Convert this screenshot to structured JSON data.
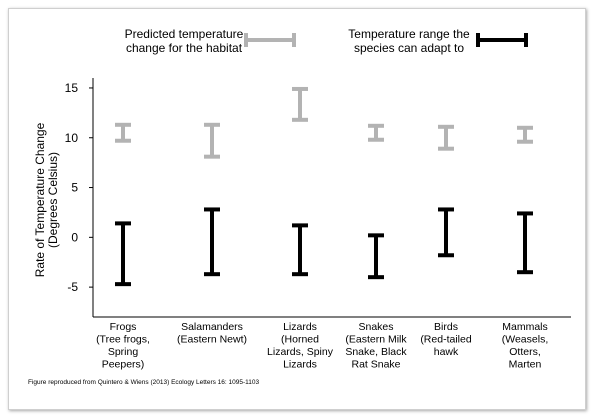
{
  "chart_data": {
    "type": "error-bar range",
    "categories": [
      [
        "Frogs",
        "(Tree frogs,",
        "Spring",
        "Peepers)"
      ],
      [
        "Salamanders",
        "(Eastern Newt)"
      ],
      [
        "Lizards",
        "(Horned",
        "Lizards, Spiny",
        "Lizards"
      ],
      [
        "Snakes",
        "(Eastern Milk",
        "Snake, Black",
        "Rat Snake"
      ],
      [
        "Birds",
        "(Red-tailed",
        "hawk"
      ],
      [
        "Mammals",
        "(Weasels,",
        "Otters,",
        "Marten"
      ]
    ],
    "series": [
      {
        "name": "Predicted temperature change for the habitat",
        "color": "#b3b3b3",
        "ranges": [
          [
            9.7,
            11.3
          ],
          [
            8.1,
            11.3
          ],
          [
            11.8,
            14.9
          ],
          [
            9.8,
            11.2
          ],
          [
            8.9,
            11.1
          ],
          [
            9.6,
            11.0
          ]
        ]
      },
      {
        "name": "Temperature range the species can adapt to",
        "color": "#000000",
        "ranges": [
          [
            -4.7,
            1.4
          ],
          [
            -3.7,
            2.8
          ],
          [
            -3.7,
            1.2
          ],
          [
            -4.0,
            0.2
          ],
          [
            -1.8,
            2.8
          ],
          [
            -3.5,
            2.4
          ]
        ]
      }
    ],
    "ylabel": [
      "Rate of Temperature Change",
      "(Degrees Celsius)"
    ],
    "yticks": [
      15,
      10,
      5,
      0,
      -5
    ],
    "ylim": [
      -8,
      16
    ],
    "grid": false,
    "legend": [
      {
        "lines": [
          "Predicted temperature",
          "change for the habitat"
        ],
        "color": "#b3b3b3"
      },
      {
        "lines": [
          "Temperature range the",
          "species can adapt to"
        ],
        "color": "#000000"
      }
    ],
    "credit": "Figure reproduced from Quintero & Wiens (2013) Ecology Letters 16: 1095-1103"
  }
}
